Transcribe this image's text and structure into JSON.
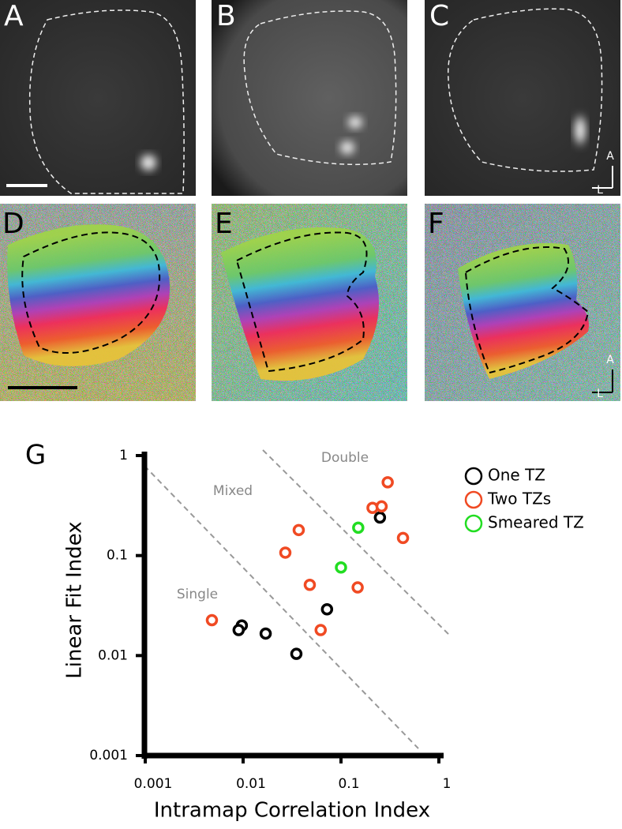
{
  "figure": {
    "panel_labels": [
      "A",
      "B",
      "C",
      "D",
      "E",
      "F"
    ],
    "orientation_labels": [
      "A",
      "L"
    ]
  },
  "chart_data": {
    "type": "scatter",
    "panel_label": "G",
    "x_label": "Intramap Correlation Index",
    "y_label": "Linear Fit Index",
    "x_log": true,
    "y_log": true,
    "xlim": [
      0.001,
      1
    ],
    "ylim": [
      0.001,
      1
    ],
    "xticks": [
      0.001,
      0.01,
      0.1,
      1
    ],
    "yticks": [
      0.001,
      0.01,
      0.1,
      1
    ],
    "legend": "top-right",
    "annotations": [
      "Double",
      "Mixed",
      "Single"
    ],
    "series": [
      {
        "name": "One TZ",
        "color": "#000000",
        "x": [
          0.25,
          0.0097,
          0.009,
          0.017,
          0.035,
          0.072
        ],
        "values": [
          0.24,
          0.02,
          0.018,
          0.0166,
          0.0104,
          0.029
        ]
      },
      {
        "name": "Two TZs",
        "color": "#f04a23",
        "x": [
          0.0048,
          0.3,
          0.21,
          0.26,
          0.037,
          0.027,
          0.43,
          0.048,
          0.148,
          0.062
        ],
        "values": [
          0.0226,
          0.54,
          0.3,
          0.31,
          0.18,
          0.107,
          0.15,
          0.051,
          0.048,
          0.018
        ]
      },
      {
        "name": "Smeared TZ",
        "color": "#22dd22",
        "x": [
          0.15,
          0.1
        ],
        "values": [
          0.19,
          0.076
        ]
      }
    ]
  }
}
